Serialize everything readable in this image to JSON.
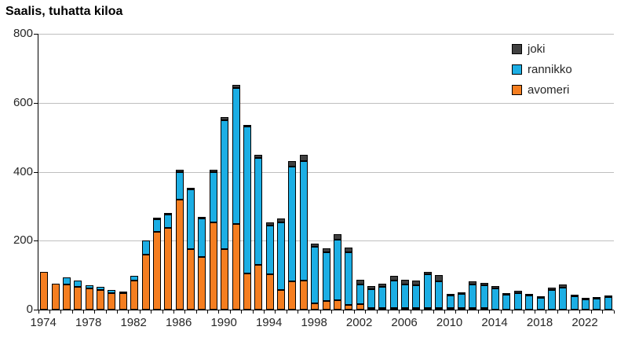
{
  "chart_data": {
    "type": "bar",
    "stacked": true,
    "title": "Saalis, tuhatta kiloa",
    "ylim": [
      0,
      800
    ],
    "yticks": [
      0,
      200,
      400,
      600,
      800
    ],
    "grid": true,
    "legend_position": "top-right",
    "legend_order": [
      "joki",
      "rannikko",
      "avomeri"
    ],
    "colors": {
      "joki": "#404040",
      "rannikko": "#1CAEE4",
      "avomeri": "#F57E20"
    },
    "categories": [
      1974,
      1975,
      1976,
      1977,
      1978,
      1979,
      1980,
      1981,
      1982,
      1983,
      1984,
      1985,
      1986,
      1987,
      1988,
      1989,
      1990,
      1991,
      1992,
      1993,
      1994,
      1995,
      1996,
      1997,
      1998,
      1999,
      2000,
      2001,
      2002,
      2003,
      2004,
      2005,
      2006,
      2007,
      2008,
      2009,
      2010,
      2011,
      2012,
      2013,
      2014,
      2015,
      2016,
      2017,
      2018,
      2019,
      2020,
      2021,
      2022,
      2023,
      2024
    ],
    "xtick_labels": [
      1974,
      1978,
      1982,
      1986,
      1990,
      1994,
      1998,
      2002,
      2006,
      2010,
      2014,
      2018,
      2022
    ],
    "series": [
      {
        "name": "avomeri",
        "values": [
          110,
          75,
          73,
          66,
          61,
          56,
          48,
          47,
          85,
          160,
          225,
          236,
          320,
          175,
          153,
          253,
          175,
          248,
          106,
          129,
          103,
          57,
          82,
          84,
          19,
          25,
          28,
          14,
          17,
          5,
          4,
          2,
          2,
          2,
          2,
          1,
          1,
          1,
          1,
          1,
          0,
          0,
          0,
          0,
          0,
          0,
          0,
          0,
          0,
          0,
          0
        ]
      },
      {
        "name": "rannikko",
        "values": [
          0,
          0,
          20,
          18,
          9,
          10,
          8,
          3,
          14,
          40,
          38,
          40,
          80,
          173,
          112,
          147,
          375,
          395,
          424,
          312,
          141,
          197,
          333,
          346,
          163,
          142,
          174,
          152,
          56,
          55,
          62,
          79,
          69,
          67,
          97,
          77,
          36,
          40,
          68,
          65,
          62,
          44,
          47,
          41,
          35,
          56,
          63,
          39,
          30,
          31,
          36
        ]
      },
      {
        "name": "joki",
        "values": [
          0,
          0,
          0,
          0,
          0,
          0,
          0,
          0,
          0,
          0,
          2,
          2,
          5,
          5,
          3,
          5,
          8,
          10,
          5,
          9,
          9,
          10,
          15,
          20,
          10,
          10,
          16,
          14,
          13,
          8,
          8,
          15,
          13,
          12,
          9,
          19,
          5,
          5,
          9,
          8,
          7,
          4,
          8,
          5,
          4,
          7,
          11,
          4,
          3,
          3,
          4
        ]
      }
    ]
  }
}
